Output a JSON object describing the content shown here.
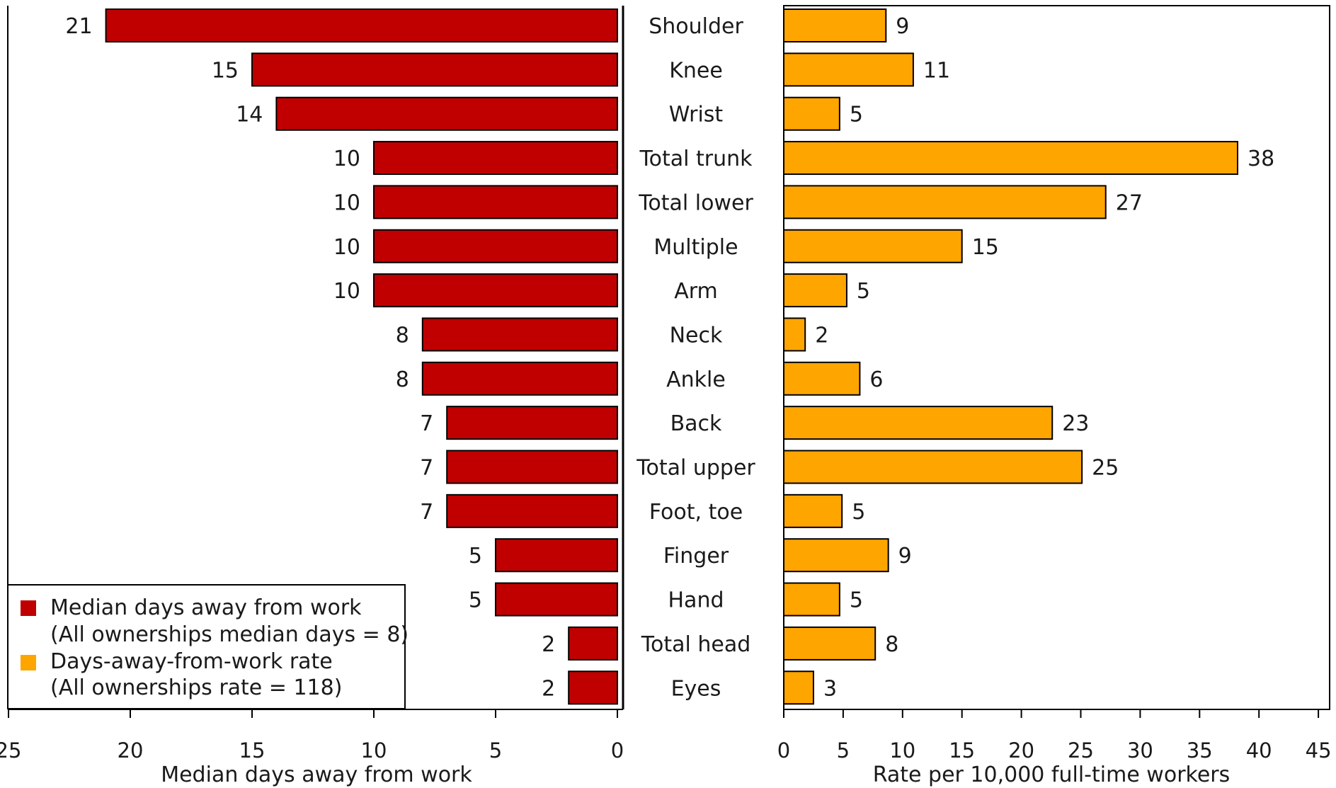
{
  "colors": {
    "left_bar": "#C00000",
    "right_bar": "#FFA500",
    "outline": "#000000"
  },
  "chart_data": {
    "type": "bar",
    "orientation": "horizontal",
    "categories": [
      "Shoulder",
      "Knee",
      "Wrist",
      "Total trunk",
      "Total lower",
      "Multiple",
      "Arm",
      "Neck",
      "Ankle",
      "Back",
      "Total upper",
      "Foot, toe",
      "Finger",
      "Hand",
      "Total head",
      "Eyes"
    ],
    "series": [
      {
        "name": "Median days away from work",
        "side": "left",
        "values": [
          21,
          15,
          14,
          10,
          10,
          10,
          10,
          8,
          8,
          7,
          7,
          7,
          5,
          5,
          2,
          2
        ],
        "xlabel": "Median days away from work",
        "xlim": [
          0,
          25
        ],
        "ticks": [
          25,
          20,
          15,
          10,
          5,
          0
        ],
        "reversed": true
      },
      {
        "name": "Days-away-from-work rate",
        "side": "right",
        "values": [
          8.6,
          10.9,
          4.7,
          38.2,
          27.1,
          15.0,
          5.3,
          1.8,
          6.4,
          22.6,
          25.1,
          4.9,
          8.8,
          4.7,
          7.7,
          2.5
        ],
        "labels": [
          "9",
          "11",
          "5",
          "38",
          "27",
          "15",
          "5",
          "2",
          "6",
          "23",
          "25",
          "5",
          "9",
          "5",
          "8",
          "3"
        ],
        "xlabel": "Rate per 10,000 full-time workers",
        "xlim": [
          0,
          45
        ],
        "ticks": [
          0,
          5,
          10,
          15,
          20,
          25,
          30,
          35,
          40,
          45
        ]
      }
    ],
    "legend": {
      "placement": "bottom-left",
      "entries": [
        {
          "line1": "Median days away from work",
          "line2": "(All ownerships median days = 8)"
        },
        {
          "line1": "Days-away-from-work rate",
          "line2": "(All ownerships rate = 118)"
        }
      ]
    }
  }
}
